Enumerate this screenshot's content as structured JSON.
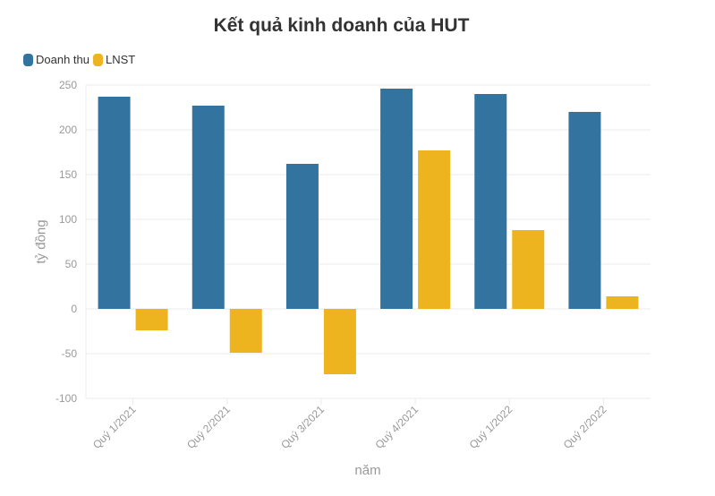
{
  "title": "Kết quả kinh doanh của HUT",
  "legend": [
    {
      "label": "Doanh thu",
      "color": "#33739f"
    },
    {
      "label": "LNST",
      "color": "#edb41f"
    }
  ],
  "axes": {
    "ylabel": "tỷ đồng",
    "xlabel": "năm",
    "yticks": [
      250,
      200,
      150,
      100,
      50,
      0,
      -50,
      -100
    ]
  },
  "chart_data": {
    "type": "bar",
    "title": "Kết quả kinh doanh của HUT",
    "xlabel": "năm",
    "ylabel": "tỷ đồng",
    "ylim": [
      -100,
      250
    ],
    "grid": true,
    "legend_position": "top-left",
    "categories": [
      "Quý 1/2021",
      "Quý 2/2021",
      "Quý 3/2021",
      "Quý 4/2021",
      "Quý 1/2022",
      "Quý 2/2022"
    ],
    "series": [
      {
        "name": "Doanh thu",
        "color": "#33739f",
        "values": [
          237,
          227,
          162,
          246,
          240,
          220
        ]
      },
      {
        "name": "LNST",
        "color": "#edb41f",
        "values": [
          -24,
          -49,
          -73,
          177,
          88,
          14
        ]
      }
    ]
  }
}
